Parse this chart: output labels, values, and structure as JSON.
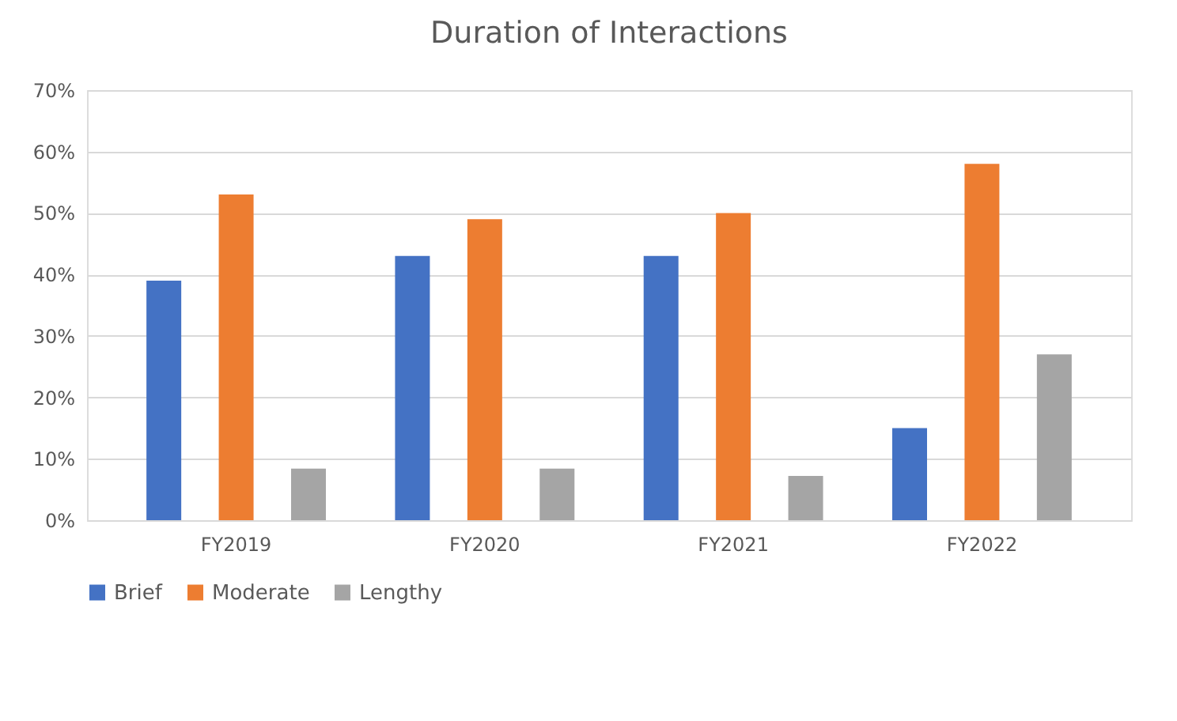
{
  "chart_data": {
    "type": "bar",
    "title": "Duration of Interactions",
    "categories": [
      "FY2019",
      "FY2020",
      "FY2021",
      "FY2022"
    ],
    "series": [
      {
        "name": "Brief",
        "color": "#4472c4",
        "values": [
          39,
          43,
          43,
          15
        ]
      },
      {
        "name": "Moderate",
        "color": "#ed7d31",
        "values": [
          53,
          49,
          50,
          58
        ]
      },
      {
        "name": "Lengthy",
        "color": "#a5a5a5",
        "values": [
          8.4,
          8.4,
          7.2,
          27
        ]
      }
    ],
    "ylim": [
      0,
      70
    ],
    "yticks": [
      {
        "value": 0,
        "label": "0%"
      },
      {
        "value": 10,
        "label": "10%"
      },
      {
        "value": 20,
        "label": "20%"
      },
      {
        "value": 30,
        "label": "30%"
      },
      {
        "value": 40,
        "label": "40%"
      },
      {
        "value": 50,
        "label": "50%"
      },
      {
        "value": 60,
        "label": "60%"
      },
      {
        "value": 70,
        "label": "70%"
      }
    ],
    "grid": "y",
    "legend": "bottom"
  }
}
